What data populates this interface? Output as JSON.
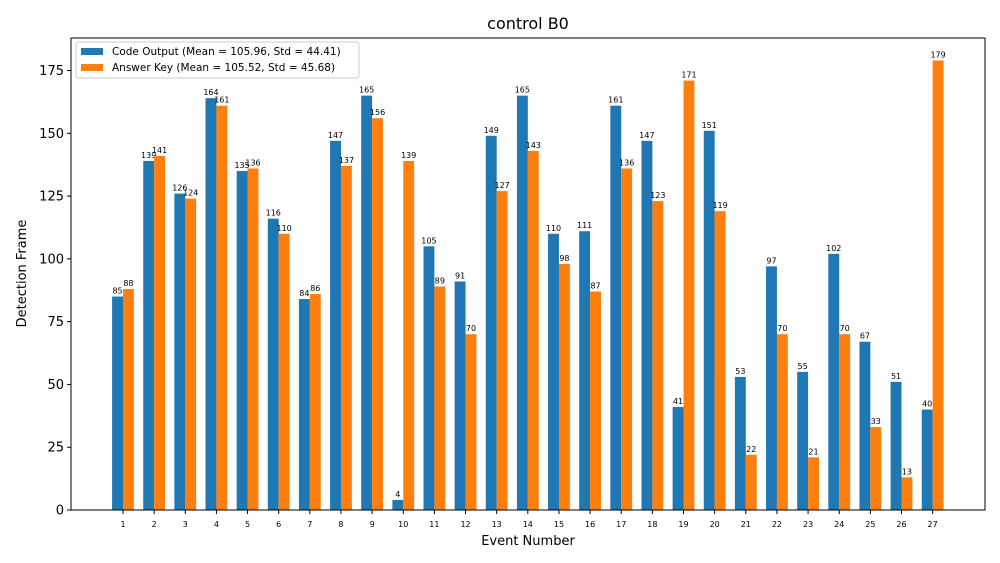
{
  "chart_data": {
    "type": "bar",
    "title": "control B0",
    "xlabel": "Event Number",
    "ylabel": "Detection Frame",
    "ylim": [
      0,
      187.95
    ],
    "yticks": [
      0,
      25,
      50,
      75,
      100,
      125,
      150,
      175
    ],
    "grid": false,
    "legend_position": "top-left",
    "categories": [
      "1",
      "2",
      "3",
      "4",
      "5",
      "6",
      "7",
      "8",
      "9",
      "10",
      "11",
      "12",
      "13",
      "14",
      "15",
      "16",
      "17",
      "18",
      "19",
      "20",
      "21",
      "22",
      "23",
      "24",
      "25",
      "26",
      "27"
    ],
    "series": [
      {
        "name": "Code Output (Mean = 105.96, Std = 44.41)",
        "color": "#1f77b4",
        "values": [
          85,
          139,
          126,
          164,
          135,
          116,
          84,
          147,
          165,
          4,
          105,
          91,
          149,
          165,
          110,
          111,
          161,
          147,
          41,
          151,
          53,
          97,
          55,
          102,
          67,
          51,
          40
        ]
      },
      {
        "name": "Answer Key (Mean = 105.52, Std = 45.68)",
        "color": "#ff7f0e",
        "values": [
          88,
          141,
          124,
          161,
          136,
          110,
          86,
          137,
          156,
          139,
          89,
          70,
          127,
          143,
          98,
          87,
          136,
          123,
          171,
          119,
          22,
          70,
          21,
          70,
          33,
          13,
          179
        ]
      }
    ]
  }
}
